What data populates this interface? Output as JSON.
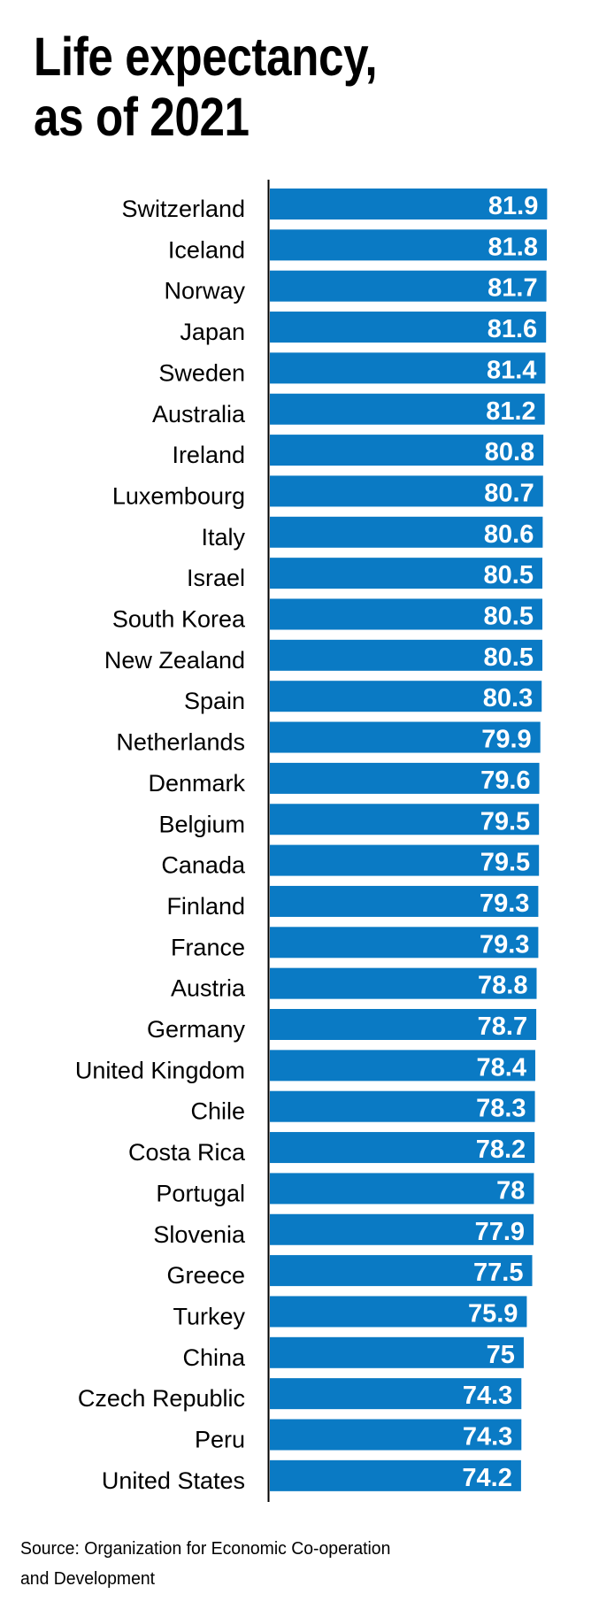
{
  "title": {
    "line1": "Life expectancy,",
    "line2": "as of 2021"
  },
  "source": {
    "line1": "Source: Organization for Economic Co-operation",
    "line2": "and Development"
  },
  "colors": {
    "bar": "#0A7AC4",
    "value_text": "#FFFFFF",
    "label_text": "#000000",
    "axis": "#000000"
  },
  "chart_data": {
    "type": "bar",
    "orientation": "horizontal",
    "title": "Life expectancy, as of 2021",
    "xlabel": "",
    "ylabel": "",
    "xlim": [
      0,
      82
    ],
    "grid": false,
    "legend": "none",
    "categories": [
      "Switzerland",
      "Iceland",
      "Norway",
      "Japan",
      "Sweden",
      "Australia",
      "Ireland",
      "Luxembourg",
      "Italy",
      "Israel",
      "South Korea",
      "New Zealand",
      "Spain",
      "Netherlands",
      "Denmark",
      "Belgium",
      "Canada",
      "Finland",
      "France",
      "Austria",
      "Germany",
      "United Kingdom",
      "Chile",
      "Costa Rica",
      "Portugal",
      "Slovenia",
      "Greece",
      "Turkey",
      "China",
      "Czech Republic",
      "Peru",
      "United States"
    ],
    "values": [
      81.9,
      81.8,
      81.7,
      81.6,
      81.4,
      81.2,
      80.8,
      80.7,
      80.6,
      80.5,
      80.5,
      80.5,
      80.3,
      79.9,
      79.6,
      79.5,
      79.5,
      79.3,
      79.3,
      78.8,
      78.7,
      78.4,
      78.3,
      78.2,
      78,
      77.9,
      77.5,
      75.9,
      75,
      74.3,
      74.3,
      74.2
    ],
    "value_labels": [
      "81.9",
      "81.8",
      "81.7",
      "81.6",
      "81.4",
      "81.2",
      "80.8",
      "80.7",
      "80.6",
      "80.5",
      "80.5",
      "80.5",
      "80.3",
      "79.9",
      "79.6",
      "79.5",
      "79.5",
      "79.3",
      "79.3",
      "78.8",
      "78.7",
      "78.4",
      "78.3",
      "78.2",
      "78",
      "77.9",
      "77.5",
      "75.9",
      "75",
      "74.3",
      "74.3",
      "74.2"
    ]
  }
}
